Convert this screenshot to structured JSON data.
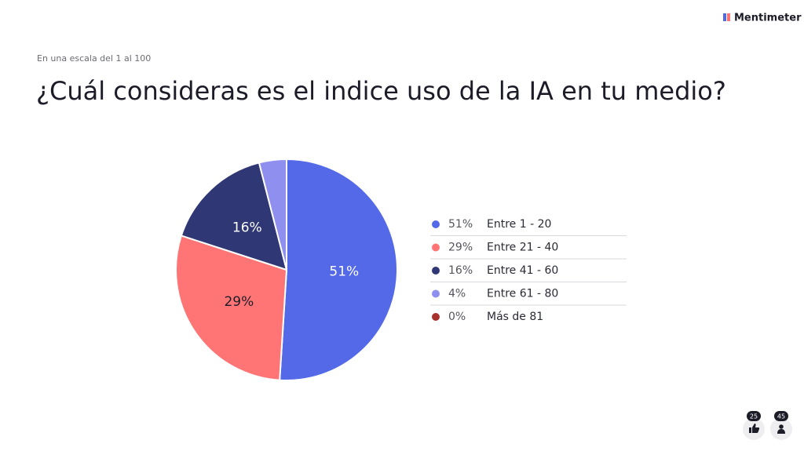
{
  "brand": "Mentimeter",
  "reactions": {
    "likes": 25,
    "participants": 45
  },
  "chart_data": {
    "type": "pie",
    "subtitle": "En una escala del 1 al 100",
    "title": "¿Cuál consideras es el indice uso de la IA en tu medio?",
    "categories": [
      "Entre 1 - 20",
      "Entre 21 - 40",
      "Entre 41 - 60",
      "Entre 61 - 80",
      "Más de 81"
    ],
    "values": [
      51,
      29,
      16,
      4,
      0
    ],
    "value_labels": [
      "51%",
      "29%",
      "16%",
      "4%",
      "0%"
    ],
    "colors": [
      "#5469e8",
      "#ff7474",
      "#2f3775",
      "#8f8ff0",
      "#a8312e"
    ],
    "legend": "right"
  }
}
